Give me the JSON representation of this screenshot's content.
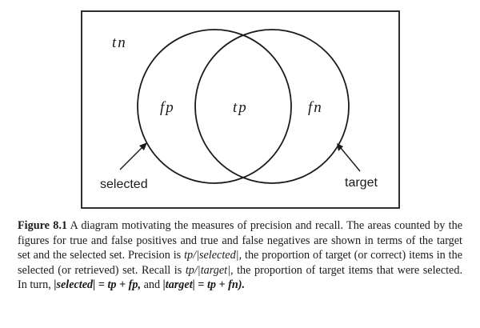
{
  "diagram": {
    "labels": {
      "tn": "tn",
      "fp": "fp",
      "tp": "tp",
      "fn": "fn",
      "selected": "selected",
      "target": "target"
    }
  },
  "caption": {
    "figure_number": "Figure 8.1",
    "part1": " A diagram motivating the measures of precision and recall. The areas counted by the figures for true and false positives and true and false negatives are shown in terms of the target set and the selected set. Precision is ",
    "precision_formula": "tp/|selected|",
    "part2": ", the proportion of target (or correct) items in the selected (or retrieved) set. Recall is ",
    "recall_formula": "tp/|target|",
    "part3": ", the proportion of target items that were selected. In turn, ",
    "selected_eq": "|selected| = tp + fp,",
    "part4": " and ",
    "target_eq": "|target| = tp + fn).",
    "part5": ""
  }
}
